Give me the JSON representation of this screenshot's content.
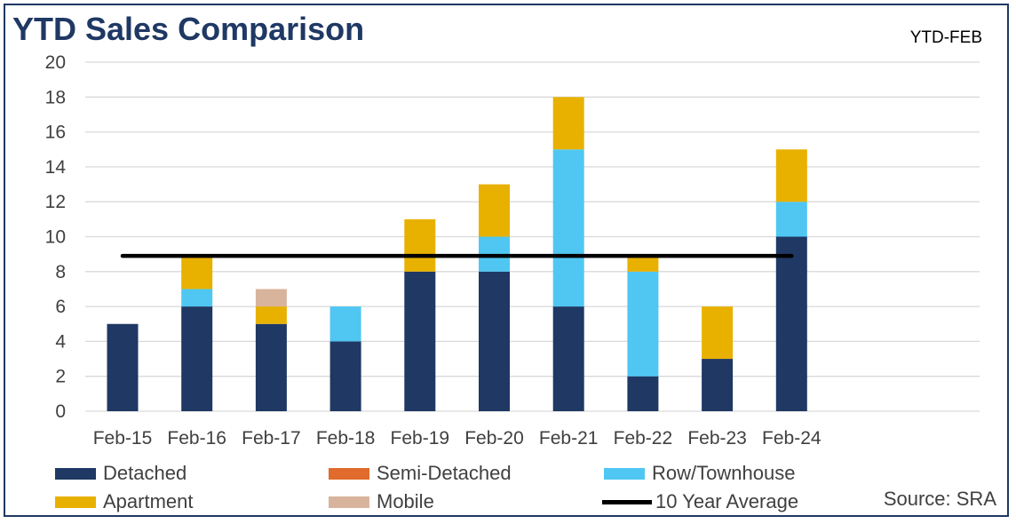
{
  "title": "YTD Sales Comparison",
  "period_label": "YTD-FEB",
  "source": "Source: SRA",
  "chart_data": {
    "type": "bar",
    "stacked": true,
    "title": "YTD Sales Comparison",
    "categories": [
      "Feb-15",
      "Feb-16",
      "Feb-17",
      "Feb-18",
      "Feb-19",
      "Feb-20",
      "Feb-21",
      "Feb-22",
      "Feb-23",
      "Feb-24"
    ],
    "series": [
      {
        "name": "Detached",
        "color": "#1f3864",
        "values": [
          5,
          6,
          5,
          4,
          8,
          8,
          6,
          2,
          3,
          10
        ]
      },
      {
        "name": "Semi-Detached",
        "color": "#e06b2c",
        "values": [
          0,
          0,
          0,
          0,
          0,
          0,
          0,
          0,
          0,
          0
        ]
      },
      {
        "name": "Row/Townhouse",
        "color": "#4fc7f2",
        "values": [
          0,
          1,
          0,
          2,
          0,
          2,
          9,
          6,
          0,
          2
        ]
      },
      {
        "name": "Apartment",
        "color": "#e8b100",
        "values": [
          0,
          2,
          1,
          0,
          3,
          3,
          3,
          1,
          3,
          3
        ]
      },
      {
        "name": "Mobile",
        "color": "#d8b49c",
        "values": [
          0,
          0,
          1,
          0,
          0,
          0,
          0,
          0,
          0,
          0
        ]
      }
    ],
    "reference_line": {
      "name": "10 Year Average",
      "value": 8.9,
      "color": "#000000"
    },
    "ylim": [
      0,
      20
    ],
    "yticks": [
      0,
      2,
      4,
      6,
      8,
      10,
      12,
      14,
      16,
      18,
      20
    ],
    "grid": true,
    "legend_position": "bottom"
  },
  "legend": [
    {
      "label": "Detached",
      "color": "#1f3864",
      "kind": "box"
    },
    {
      "label": "Semi-Detached",
      "color": "#e06b2c",
      "kind": "box"
    },
    {
      "label": "Row/Townhouse",
      "color": "#4fc7f2",
      "kind": "box"
    },
    {
      "label": "Apartment",
      "color": "#e8b100",
      "kind": "box"
    },
    {
      "label": "Mobile",
      "color": "#d8b49c",
      "kind": "box"
    },
    {
      "label": "10 Year Average",
      "color": "#000000",
      "kind": "line"
    }
  ]
}
